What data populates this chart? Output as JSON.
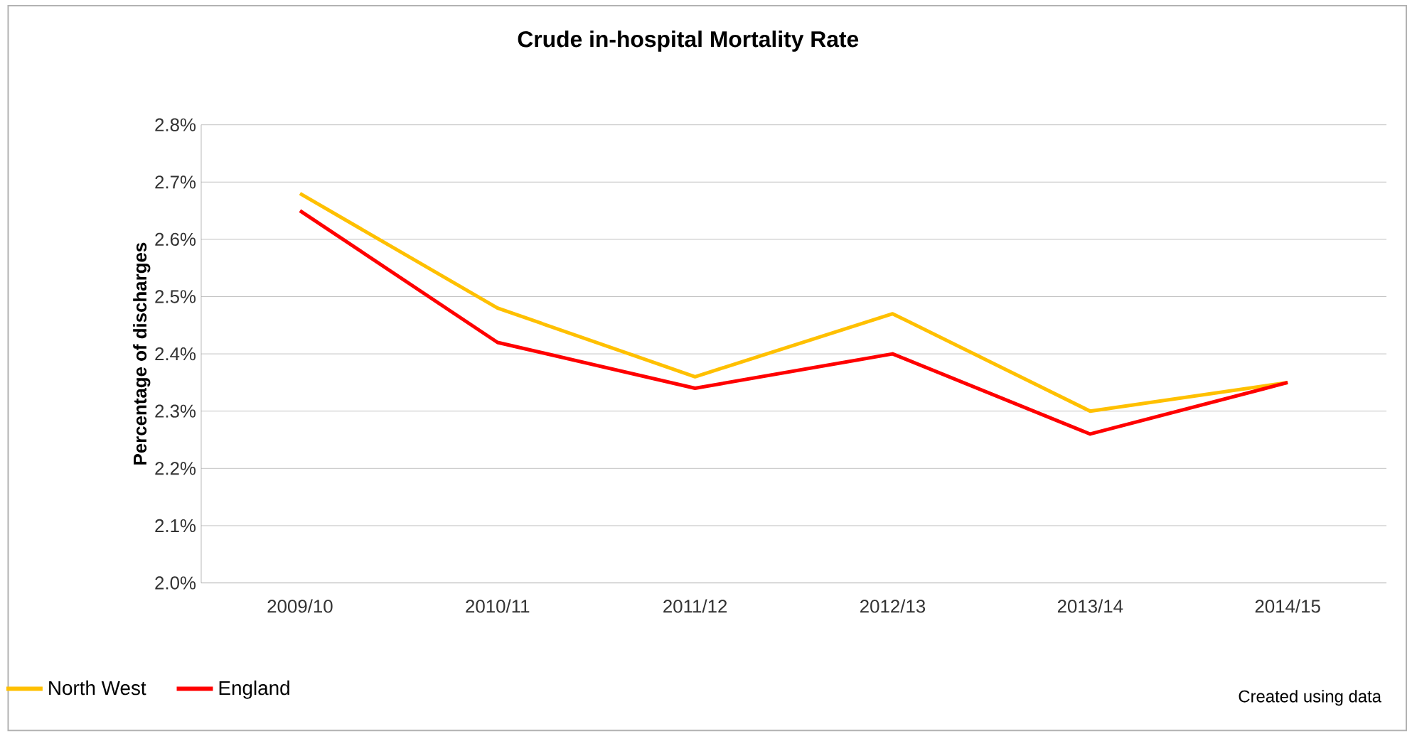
{
  "chart_data": {
    "type": "line",
    "title": "Crude in-hospital Mortality Rate",
    "ylabel": "Percentage of discharges",
    "categories": [
      "2009/10",
      "2010/11",
      "2011/12",
      "2012/13",
      "2013/14",
      "2014/15"
    ],
    "series": [
      {
        "name": "North West",
        "color": "#ffc000",
        "values": [
          2.68,
          2.48,
          2.36,
          2.47,
          2.3,
          2.35
        ]
      },
      {
        "name": "England",
        "color": "#ff0000",
        "values": [
          2.65,
          2.42,
          2.34,
          2.4,
          2.26,
          2.35
        ]
      }
    ],
    "ylim": [
      2.0,
      2.8
    ],
    "yticks": [
      {
        "value": 2.0,
        "label": "2.0%"
      },
      {
        "value": 2.1,
        "label": "2.1%"
      },
      {
        "value": 2.2,
        "label": "2.2%"
      },
      {
        "value": 2.3,
        "label": "2.3%"
      },
      {
        "value": 2.4,
        "label": "2.4%"
      },
      {
        "value": 2.5,
        "label": "2.5%"
      },
      {
        "value": 2.6,
        "label": "2.6%"
      },
      {
        "value": 2.7,
        "label": "2.7%"
      },
      {
        "value": 2.8,
        "label": "2.8%"
      }
    ],
    "grid": "y",
    "legend": "bottom left",
    "marker": "none",
    "line_style": "solid",
    "annotations": [
      "Created using data"
    ]
  }
}
